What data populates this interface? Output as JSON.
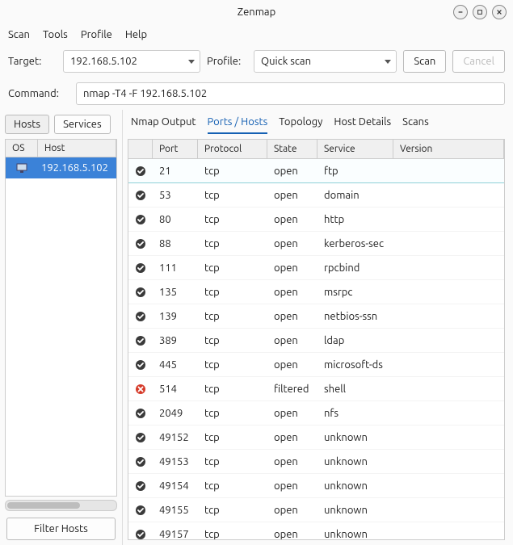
{
  "window": {
    "title": "Zenmap"
  },
  "menu": {
    "items": [
      "Scan",
      "Tools",
      "Profile",
      "Help"
    ]
  },
  "toolbar": {
    "target_label": "Target:",
    "target_value": "192.168.5.102",
    "profile_label": "Profile:",
    "profile_value": "Quick scan",
    "scan_label": "Scan",
    "cancel_label": "Cancel",
    "command_label": "Command:",
    "command_value": "nmap -T4 -F 192.168.5.102"
  },
  "left": {
    "tab_hosts": "Hosts",
    "tab_services": "Services",
    "col_os": "OS",
    "col_host": "Host",
    "hosts": [
      {
        "ip": "192.168.5.102"
      }
    ],
    "filter_label": "Filter Hosts"
  },
  "right": {
    "tabs": [
      "Nmap Output",
      "Ports / Hosts",
      "Topology",
      "Host Details",
      "Scans"
    ],
    "active_tab": 1,
    "cols": {
      "port": "Port",
      "protocol": "Protocol",
      "state": "State",
      "service": "Service",
      "version": "Version"
    },
    "rows": [
      {
        "port": "21",
        "proto": "tcp",
        "state": "open",
        "service": "ftp",
        "ok": true
      },
      {
        "port": "53",
        "proto": "tcp",
        "state": "open",
        "service": "domain",
        "ok": true
      },
      {
        "port": "80",
        "proto": "tcp",
        "state": "open",
        "service": "http",
        "ok": true
      },
      {
        "port": "88",
        "proto": "tcp",
        "state": "open",
        "service": "kerberos-sec",
        "ok": true
      },
      {
        "port": "111",
        "proto": "tcp",
        "state": "open",
        "service": "rpcbind",
        "ok": true
      },
      {
        "port": "135",
        "proto": "tcp",
        "state": "open",
        "service": "msrpc",
        "ok": true
      },
      {
        "port": "139",
        "proto": "tcp",
        "state": "open",
        "service": "netbios-ssn",
        "ok": true
      },
      {
        "port": "389",
        "proto": "tcp",
        "state": "open",
        "service": "ldap",
        "ok": true
      },
      {
        "port": "445",
        "proto": "tcp",
        "state": "open",
        "service": "microsoft-ds",
        "ok": true
      },
      {
        "port": "514",
        "proto": "tcp",
        "state": "filtered",
        "service": "shell",
        "ok": false
      },
      {
        "port": "2049",
        "proto": "tcp",
        "state": "open",
        "service": "nfs",
        "ok": true
      },
      {
        "port": "49152",
        "proto": "tcp",
        "state": "open",
        "service": "unknown",
        "ok": true
      },
      {
        "port": "49153",
        "proto": "tcp",
        "state": "open",
        "service": "unknown",
        "ok": true
      },
      {
        "port": "49154",
        "proto": "tcp",
        "state": "open",
        "service": "unknown",
        "ok": true
      },
      {
        "port": "49155",
        "proto": "tcp",
        "state": "open",
        "service": "unknown",
        "ok": true
      },
      {
        "port": "49157",
        "proto": "tcp",
        "state": "open",
        "service": "unknown",
        "ok": true
      }
    ]
  },
  "colors": {
    "selection_bg": "#3b82d8",
    "tab_active": "#1560b3",
    "ok_icon": "#3a3a3a",
    "fail_icon": "#d63b2a"
  }
}
